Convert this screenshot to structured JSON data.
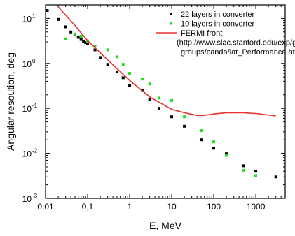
{
  "chart_data": {
    "type": "scatter",
    "xscale": "log",
    "yscale": "log",
    "xlabel": "E, MeV",
    "ylabel": "Angular resoution, deg",
    "xlim": [
      0.01,
      5000
    ],
    "ylim": [
      0.001,
      20
    ],
    "grid": false,
    "legend_position": "top-right",
    "x_ticks": [
      {
        "value": 0.01,
        "label": "0,01"
      },
      {
        "value": 0.1,
        "label": "0,1"
      },
      {
        "value": 1,
        "label": "1"
      },
      {
        "value": 10,
        "label": "10"
      },
      {
        "value": 100,
        "label": "100"
      },
      {
        "value": 1000,
        "label": "1000"
      }
    ],
    "y_ticks": [
      {
        "value": 0.001,
        "label": "10",
        "exp": "-3"
      },
      {
        "value": 0.01,
        "label": "10",
        "exp": "-2"
      },
      {
        "value": 0.1,
        "label": "10",
        "exp": "-1"
      },
      {
        "value": 1,
        "label": "10",
        "exp": "0"
      },
      {
        "value": 10,
        "label": "10",
        "exp": "1"
      }
    ],
    "series": [
      {
        "name": "22 layers in converter",
        "marker": "square",
        "color": "#000000",
        "x": [
          0.011,
          0.02,
          0.03,
          0.04,
          0.05,
          0.06,
          0.07,
          0.08,
          0.09,
          0.1,
          0.15,
          0.2,
          0.3,
          0.5,
          0.7,
          1.0,
          2.0,
          3.0,
          5.0,
          10,
          20,
          50,
          100,
          200,
          500,
          1000,
          3000
        ],
        "y": [
          15,
          9.5,
          6.5,
          5.0,
          4.3,
          3.8,
          3.4,
          3.1,
          2.9,
          2.7,
          2.0,
          1.35,
          0.95,
          0.65,
          0.48,
          0.32,
          0.25,
          0.16,
          0.1,
          0.065,
          0.04,
          0.02,
          0.013,
          0.0098,
          0.0053,
          0.004,
          0.003
        ]
      },
      {
        "name": "10 layers in converter",
        "marker": "square",
        "color": "#22dd22",
        "x": [
          0.03,
          0.05,
          0.07,
          0.1,
          0.15,
          0.3,
          0.5,
          0.7,
          1.0,
          2.0,
          3.0,
          5.0,
          10,
          20,
          50,
          100,
          200,
          500,
          1000
        ],
        "y": [
          3.5,
          4.5,
          4.0,
          3.0,
          2.4,
          2.0,
          1.4,
          0.95,
          0.6,
          0.45,
          0.35,
          0.17,
          0.15,
          0.065,
          0.032,
          0.018,
          0.009,
          0.0042,
          0.0032
        ]
      },
      {
        "name": "FERMI front",
        "marker": "line",
        "color": "#e83232",
        "x": [
          0.02,
          0.05,
          0.1,
          0.3,
          1,
          3,
          10,
          20,
          40,
          60,
          100,
          200,
          500,
          1000,
          3000
        ],
        "y": [
          18,
          7.0,
          3.2,
          1.2,
          0.42,
          0.18,
          0.095,
          0.08,
          0.07,
          0.07,
          0.075,
          0.08,
          0.08,
          0.077,
          0.068
        ]
      }
    ],
    "legend_note_lines": [
      "(http://www.slac.stanford.edu/exp/glast/",
      "groups/canda/lat_Performance.htm)"
    ]
  }
}
